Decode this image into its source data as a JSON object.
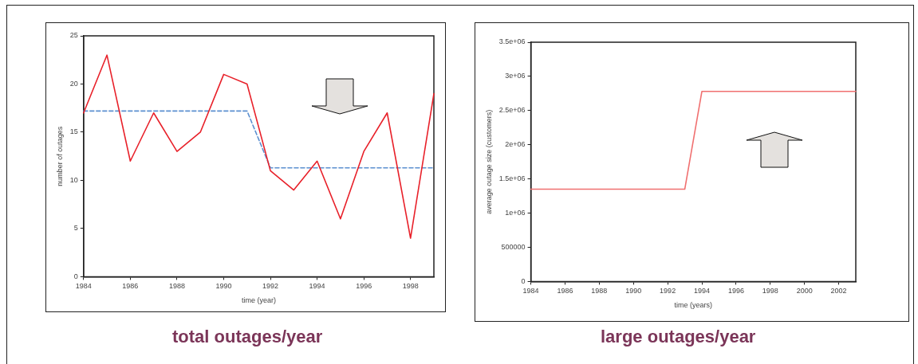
{
  "chart_data": [
    {
      "type": "line",
      "title": "total outages/year",
      "xlabel": "time (year)",
      "ylabel": "number of outages",
      "xlim": [
        1984,
        1999
      ],
      "xticks": [
        1984,
        1986,
        1988,
        1990,
        1992,
        1994,
        1996,
        1998
      ],
      "ylim": [
        0,
        25
      ],
      "yticks": [
        0,
        5,
        10,
        15,
        20,
        25
      ],
      "grid": false,
      "legend": false,
      "marker": "none",
      "series": [
        {
          "color": "#e8212a",
          "x": [
            1984,
            1985,
            1986,
            1987,
            1988,
            1989,
            1990,
            1991,
            1992,
            1993,
            1994,
            1995,
            1996,
            1997,
            1998,
            1999
          ],
          "values": [
            17,
            23,
            12,
            17,
            13,
            15,
            21,
            20,
            11,
            9,
            12,
            6,
            13,
            17,
            4,
            19
          ],
          "line_style": "solid"
        },
        {
          "color": "#5b8fd0",
          "x": [
            1984,
            1991,
            1992,
            1999
          ],
          "values": [
            17.2,
            17.2,
            11.3,
            11.3
          ],
          "line_style": "dashed"
        }
      ]
    },
    {
      "type": "line",
      "title": "large outages/year",
      "xlabel": "time (years)",
      "ylabel": "average outage size (customers)",
      "xlim": [
        1984,
        2003
      ],
      "xticks": [
        1984,
        1986,
        1988,
        1990,
        1992,
        1994,
        1996,
        1998,
        2000,
        2002
      ],
      "ylim": [
        0,
        3500000
      ],
      "yticks": [
        0,
        500000,
        {
          "value": 1000000,
          "label": "1e+06"
        },
        {
          "value": 1500000,
          "label": "1.5e+06"
        },
        {
          "value": 2000000,
          "label": "2e+06"
        },
        {
          "value": 2500000,
          "label": "2.5e+06"
        },
        {
          "value": 3000000,
          "label": "3e+06"
        },
        {
          "value": 3500000,
          "label": "3.5e+06"
        }
      ],
      "grid": false,
      "legend": false,
      "marker": "none",
      "series": [
        {
          "color": "#f07070",
          "x": [
            1984,
            1993,
            1994,
            2003
          ],
          "values": [
            1350000,
            1350000,
            2780000,
            2780000
          ],
          "line_style": "solid"
        }
      ]
    }
  ]
}
